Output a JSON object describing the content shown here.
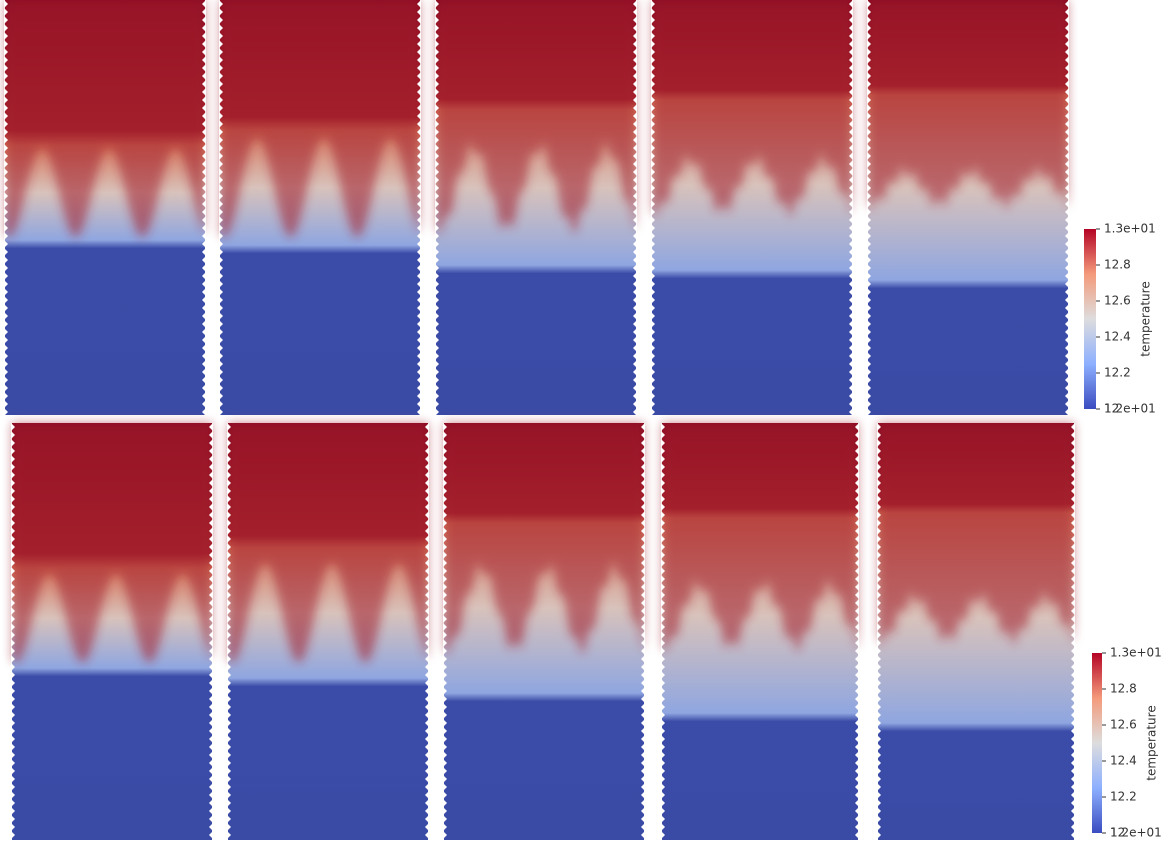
{
  "colorbars": [
    {
      "title": "temperature",
      "range": [
        12,
        13
      ],
      "ticks": [
        {
          "value": 13,
          "label": "1.3e+01"
        },
        12.8,
        12.6,
        12.4,
        12.2,
        12,
        {
          "value": 12,
          "label": "1.2e+01"
        }
      ]
    },
    {
      "title": "temperature",
      "range": [
        12,
        13
      ],
      "ticks": [
        {
          "value": 13,
          "label": "1.3e+01"
        },
        12.8,
        12.6,
        12.4,
        12.2,
        12,
        {
          "value": 12,
          "label": "1.2e+01"
        }
      ]
    }
  ]
}
